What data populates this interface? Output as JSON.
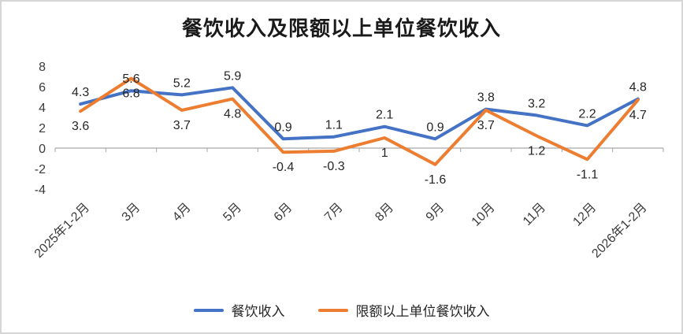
{
  "window": {
    "background": "#ffffff",
    "border_color": "#d6d6d6"
  },
  "chart_data": {
    "type": "line",
    "title": "餐饮收入及限额以上单位餐饮收入",
    "categories": [
      "2025年1-2月",
      "3月",
      "4月",
      "5月",
      "6月",
      "7月",
      "8月",
      "9月",
      "10月",
      "11月",
      "12月",
      "2026年1-2月"
    ],
    "series": [
      {
        "name": "餐饮收入",
        "color": "#4472C4",
        "values": [
          4.3,
          5.6,
          5.2,
          5.9,
          0.9,
          1.1,
          2.1,
          0.9,
          3.8,
          3.2,
          2.2,
          4.8
        ],
        "label_position": "above"
      },
      {
        "name": "限额以上单位餐饮收入",
        "color": "#ED7D31",
        "values": [
          3.6,
          6.8,
          3.7,
          4.8,
          -0.4,
          -0.3,
          1,
          -1.6,
          3.7,
          1.2,
          -1.1,
          4.7
        ],
        "label_position": "below"
      }
    ],
    "ylim": [
      -4,
      8
    ],
    "yticks": [
      8,
      6,
      4,
      2,
      0,
      -2,
      -4
    ],
    "grid": false,
    "legend_position": "bottom",
    "axis_color": "#a6a6a6",
    "label_color": "#262626"
  }
}
